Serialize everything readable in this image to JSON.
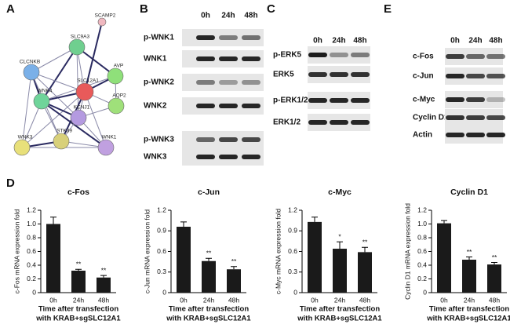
{
  "panel_labels": [
    "A",
    "B",
    "C",
    "E",
    "D"
  ],
  "network": {
    "nodes": [
      {
        "label": "SCAMP2"
      },
      {
        "label": "SLC9A3"
      },
      {
        "label": "CLCNKB"
      },
      {
        "label": "AVP"
      },
      {
        "label": "SLC12A1"
      },
      {
        "label": "AQP2"
      },
      {
        "label": "WNK4"
      },
      {
        "label": "KCNJ1"
      },
      {
        "label": "WNK3"
      },
      {
        "label": "STK39"
      },
      {
        "label": "WNK1"
      }
    ]
  },
  "blots": [
    {
      "time_labels": [
        "0h",
        "24h",
        "48h"
      ],
      "rows": [
        "p-WNK1",
        "WNK1",
        "p-WNK2",
        "WNK2",
        "p-WNK3",
        "WNK3"
      ]
    },
    {
      "time_labels": [
        "0h",
        "24h",
        "48h"
      ],
      "rows": [
        "p-ERK5",
        "ERK5",
        "p-ERK1/2",
        "ERK1/2"
      ]
    },
    {
      "time_labels": [
        "0h",
        "24h",
        "48h"
      ],
      "rows": [
        "c-Fos",
        "c-Jun",
        "c-Myc",
        "Cyclin D1",
        "Actin"
      ]
    }
  ],
  "chart_data": [
    {
      "type": "bar",
      "title": "c-Fos",
      "ylabel": "c-Fos mRNA expression fold",
      "xlabel": [
        "Time after transfection",
        "with KRAB+sgSLC12A1"
      ],
      "categories": [
        "0h",
        "24h",
        "48h"
      ],
      "values": [
        1.0,
        0.32,
        0.22
      ],
      "errors": [
        0.1,
        0.02,
        0.03
      ],
      "annotations": [
        null,
        "**",
        "**"
      ],
      "color": "#1a1a1a",
      "ylim": [
        0,
        1.2
      ],
      "yticks": [
        0,
        0.2,
        0.4,
        0.6,
        0.8,
        {
          "value": 1,
          "label": "1.0"
        },
        1.2
      ]
    },
    {
      "type": "bar",
      "title": "c-Jun",
      "ylabel": "c-Jun mRNA expression fold",
      "xlabel": [
        "Time after transfection",
        "with KRAB+sgSLC12A1"
      ],
      "categories": [
        "0h",
        "24h",
        "48h"
      ],
      "values": [
        0.96,
        0.46,
        0.34
      ],
      "errors": [
        0.07,
        0.04,
        0.04
      ],
      "annotations": [
        null,
        "**",
        "**"
      ],
      "color": "#1a1a1a",
      "ylim": [
        0,
        1.2
      ],
      "yticks": [
        0,
        0.3,
        0.6,
        0.9,
        1.2
      ]
    },
    {
      "type": "bar",
      "title": "c-Myc",
      "ylabel": "c-Myc mRNA expression fold",
      "xlabel": [
        "Time after transfection",
        "with KRAB+sgSLC12A1"
      ],
      "categories": [
        "0h",
        "24h",
        "48h"
      ],
      "values": [
        1.03,
        0.64,
        0.59
      ],
      "errors": [
        0.07,
        0.1,
        0.07
      ],
      "annotations": [
        null,
        "*",
        "**"
      ],
      "color": "#1a1a1a",
      "ylim": [
        0,
        1.2
      ],
      "yticks": [
        0,
        0.3,
        0.6,
        0.9,
        1.2
      ]
    },
    {
      "type": "bar",
      "title": "Cyclin D1",
      "ylabel": "Cyclin D1 mRNA expression fold",
      "xlabel": [
        "Time after transfection",
        "with KRAB+sgSLC12A1"
      ],
      "categories": [
        "0h",
        "24h",
        "48h"
      ],
      "values": [
        1.01,
        0.48,
        0.41
      ],
      "errors": [
        0.04,
        0.04,
        0.03
      ],
      "annotations": [
        null,
        "**",
        "**"
      ],
      "color": "#1a1a1a",
      "ylim": [
        0,
        1.2
      ],
      "yticks": [
        0,
        0.2,
        0.4,
        0.6,
        0.8,
        {
          "value": 1,
          "label": "1.0"
        },
        1.2
      ]
    }
  ]
}
